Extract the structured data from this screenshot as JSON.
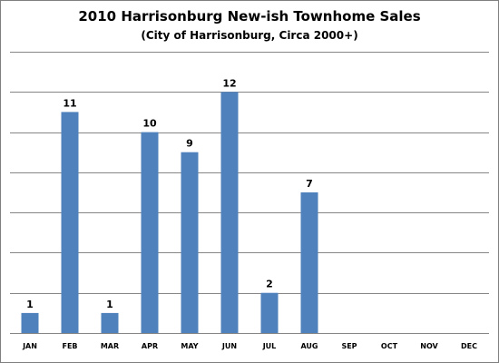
{
  "chart_data": {
    "type": "bar",
    "title": "2010 Harrisonburg New-ish Townhome Sales",
    "subtitle": "(City of Harrisonburg, Circa 2000+)",
    "categories": [
      "JAN",
      "FEB",
      "MAR",
      "APR",
      "MAY",
      "JUN",
      "JUL",
      "AUG",
      "SEP",
      "OCT",
      "NOV",
      "DEC"
    ],
    "values": [
      1,
      11,
      1,
      10,
      9,
      12,
      2,
      7,
      null,
      null,
      null,
      null
    ],
    "xlabel": "",
    "ylabel": "",
    "ylim": [
      0,
      14
    ],
    "grid": true,
    "data_labels": true,
    "bar_color": "#4f81bd"
  }
}
